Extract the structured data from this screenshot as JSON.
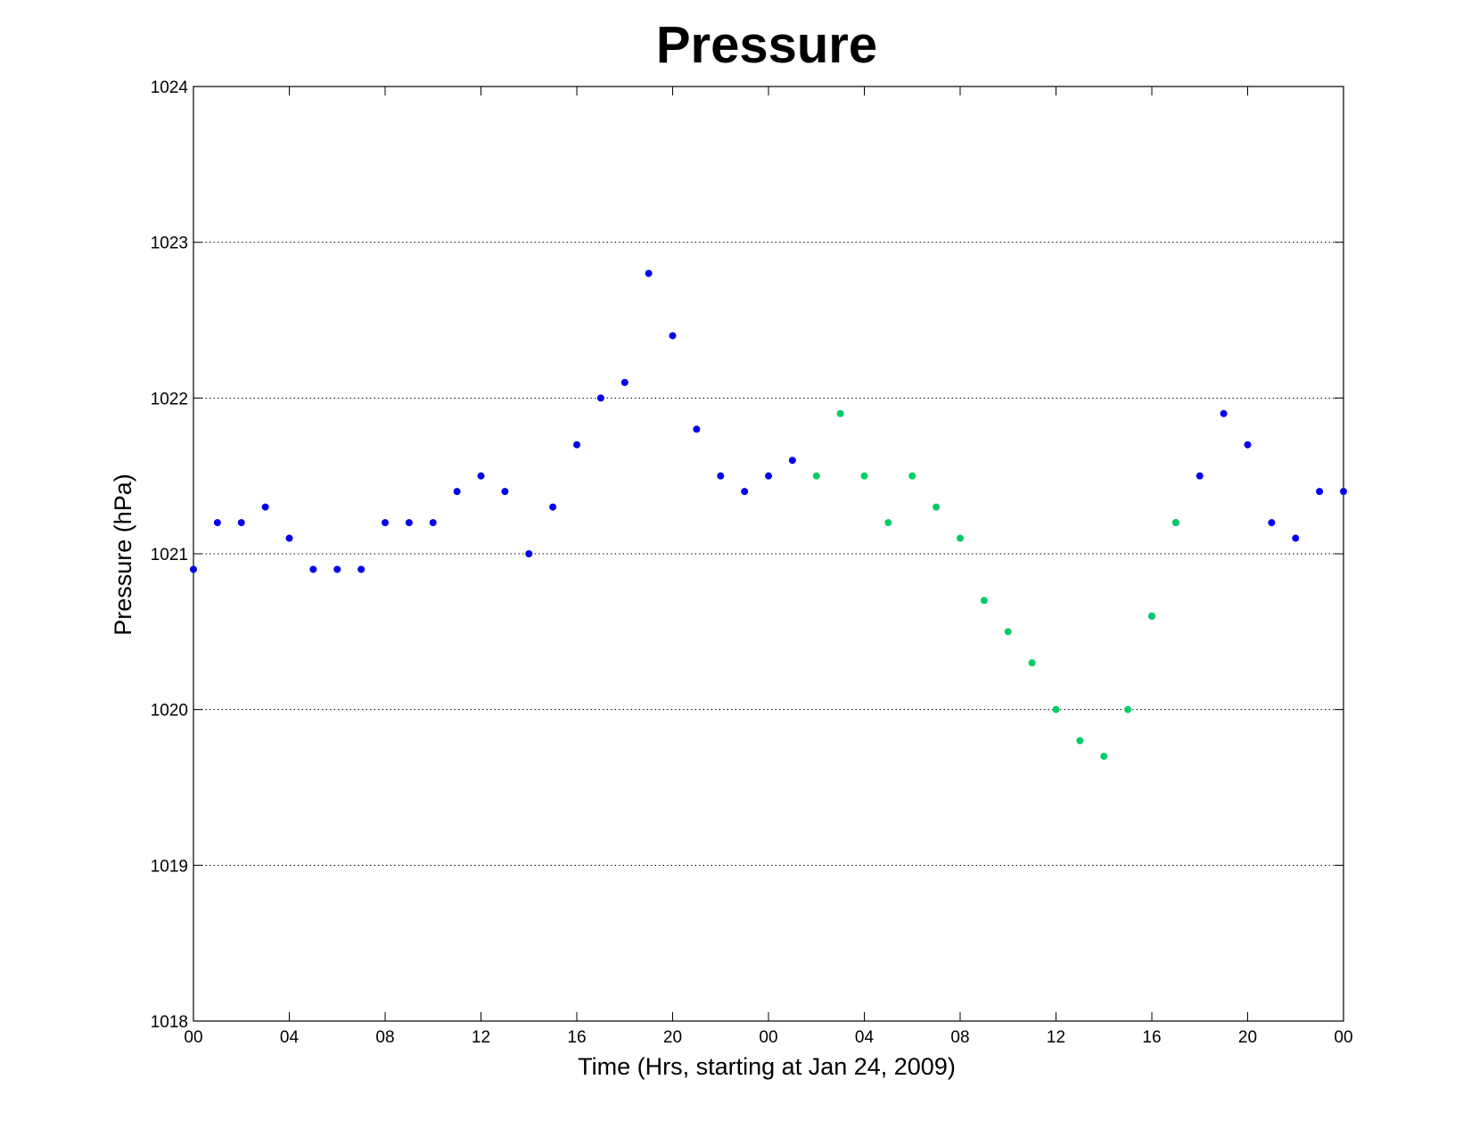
{
  "chart_data": {
    "type": "scatter",
    "title": "Pressure",
    "xlabel": "Time (Hrs, starting at Jan 24, 2009)",
    "ylabel": "Pressure (hPa)",
    "xlim": [
      0,
      48
    ],
    "ylim": [
      1018,
      1024
    ],
    "x_ticks": [
      0,
      4,
      8,
      12,
      16,
      20,
      24,
      28,
      32,
      36,
      40,
      44,
      48
    ],
    "x_tick_labels": [
      "00",
      "04",
      "08",
      "12",
      "16",
      "20",
      "00",
      "04",
      "08",
      "12",
      "16",
      "20",
      "00"
    ],
    "y_ticks": [
      1018,
      1019,
      1020,
      1021,
      1022,
      1023,
      1024
    ],
    "y_tick_labels": [
      "1018",
      "1019",
      "1020",
      "1021",
      "1022",
      "1023",
      "1024"
    ],
    "grid": "horizontal-dotted",
    "series": [
      {
        "color": "#0000ee",
        "x": [
          0,
          1,
          2,
          3,
          4,
          5,
          6,
          7,
          8,
          9,
          10,
          11,
          12,
          13,
          14,
          15,
          16,
          17,
          18,
          19,
          20,
          21,
          22,
          23,
          24,
          25,
          40,
          41,
          42,
          43,
          44,
          45,
          46,
          47,
          48
        ],
        "y": [
          1020.9,
          1021.2,
          1021.2,
          1021.3,
          1021.1,
          1020.9,
          1020.9,
          1020.9,
          1021.2,
          1021.2,
          1021.2,
          1021.4,
          1021.5,
          1021.4,
          1021.0,
          1021.3,
          1021.7,
          1022.0,
          1022.1,
          1022.8,
          1022.4,
          1021.8,
          1021.5,
          1021.4,
          1021.5,
          1021.6,
          1020.6,
          1021.2,
          1021.5,
          1021.9,
          1021.7,
          1021.2,
          1021.1,
          1021.4,
          1021.4
        ]
      },
      {
        "color": "#00cc66",
        "x": [
          26,
          27,
          28,
          29,
          30,
          31,
          32,
          33,
          34,
          35,
          36,
          37,
          38,
          39,
          40,
          41
        ],
        "y": [
          1021.5,
          1021.9,
          1021.5,
          1021.2,
          1021.5,
          1021.3,
          1021.1,
          1020.7,
          1020.5,
          1020.3,
          1020.0,
          1019.8,
          1019.7,
          1020.0,
          1020.6,
          1021.2
        ]
      }
    ]
  }
}
